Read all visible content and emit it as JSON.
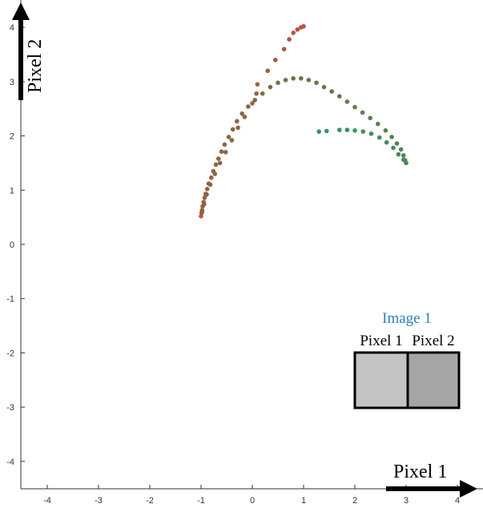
{
  "chart_data": {
    "type": "scatter",
    "title": "",
    "xlabel": "Pixel 1",
    "ylabel": "Pixel 2",
    "xlim": [
      -4.5,
      4.5
    ],
    "ylim": [
      -4.5,
      4.2
    ],
    "x_ticks": [
      "-4",
      "-3",
      "-2",
      "-1",
      "0",
      "1",
      "2",
      "3",
      "4"
    ],
    "y_ticks": [
      "4",
      "3",
      "2",
      "1",
      "0",
      "-1",
      "-2",
      "-3",
      "-4"
    ],
    "grid": false,
    "colors": {
      "start": "#b7553b",
      "middle": "#6b7446",
      "end": "#2f9566"
    },
    "series": [
      {
        "points": [
          [
            -1.0,
            0.52
          ],
          [
            -0.99,
            0.58
          ],
          [
            -0.98,
            0.63
          ],
          [
            -0.97,
            0.7
          ],
          [
            -0.95,
            0.78
          ],
          [
            -0.93,
            0.86
          ],
          [
            -0.91,
            0.93
          ],
          [
            -0.88,
            1.02
          ],
          [
            -0.85,
            1.12
          ],
          [
            -0.8,
            1.23
          ],
          [
            -0.76,
            1.35
          ],
          [
            -0.71,
            1.47
          ],
          [
            -0.66,
            1.58
          ],
          [
            -0.6,
            1.71
          ],
          [
            -0.54,
            1.84
          ],
          [
            -0.46,
            1.98
          ],
          [
            -0.38,
            2.12
          ],
          [
            -0.3,
            2.27
          ],
          [
            -0.2,
            2.41
          ],
          [
            -0.08,
            2.54
          ],
          [
            0.05,
            2.66
          ],
          [
            0.2,
            2.78
          ],
          [
            0.35,
            2.9
          ],
          [
            0.5,
            2.98
          ],
          [
            0.65,
            3.03
          ],
          [
            0.8,
            3.06
          ],
          [
            0.95,
            3.06
          ],
          [
            1.1,
            3.03
          ],
          [
            1.25,
            2.98
          ],
          [
            1.4,
            2.9
          ],
          [
            1.55,
            2.82
          ],
          [
            1.7,
            2.73
          ],
          [
            1.85,
            2.63
          ],
          [
            2.0,
            2.53
          ],
          [
            2.15,
            2.43
          ],
          [
            2.3,
            2.33
          ],
          [
            2.45,
            2.22
          ],
          [
            2.6,
            2.1
          ],
          [
            2.72,
            1.98
          ],
          [
            2.82,
            1.86
          ],
          [
            2.9,
            1.75
          ],
          [
            2.95,
            1.64
          ],
          [
            2.98,
            1.55
          ],
          [
            3.0,
            1.5
          ],
          [
            2.95,
            1.56
          ],
          [
            2.85,
            1.66
          ],
          [
            2.75,
            1.78
          ],
          [
            2.62,
            1.88
          ],
          [
            2.48,
            1.97
          ],
          [
            2.32,
            2.04
          ],
          [
            2.16,
            2.08
          ],
          [
            2.0,
            2.1
          ],
          [
            1.85,
            2.11
          ],
          [
            1.7,
            2.11
          ],
          [
            1.45,
            2.09
          ],
          [
            1.3,
            2.08
          ]
        ]
      },
      {
        "points": [
          [
            -0.98,
            0.6
          ],
          [
            -0.94,
            0.74
          ],
          [
            -0.89,
            0.92
          ],
          [
            -0.82,
            1.1
          ],
          [
            -0.73,
            1.3
          ],
          [
            -0.63,
            1.5
          ],
          [
            -0.52,
            1.7
          ],
          [
            -0.4,
            1.92
          ],
          [
            -0.28,
            2.15
          ],
          [
            -0.15,
            2.35
          ],
          [
            0.0,
            2.6
          ],
          [
            0.08,
            2.78
          ],
          [
            0.1,
            2.95
          ],
          [
            0.3,
            3.2
          ],
          [
            0.45,
            3.4
          ],
          [
            0.62,
            3.6
          ],
          [
            0.72,
            3.78
          ],
          [
            0.8,
            3.9
          ],
          [
            0.88,
            3.96
          ],
          [
            0.95,
            4.0
          ],
          [
            1.0,
            4.02
          ]
        ]
      }
    ],
    "inset": {
      "title": "Image 1",
      "labels": [
        "Pixel 1",
        "Pixel 2"
      ],
      "title_color": "#2a7fbf",
      "cell_colors": [
        "#c4c4c4",
        "#a5a5a5"
      ]
    }
  }
}
